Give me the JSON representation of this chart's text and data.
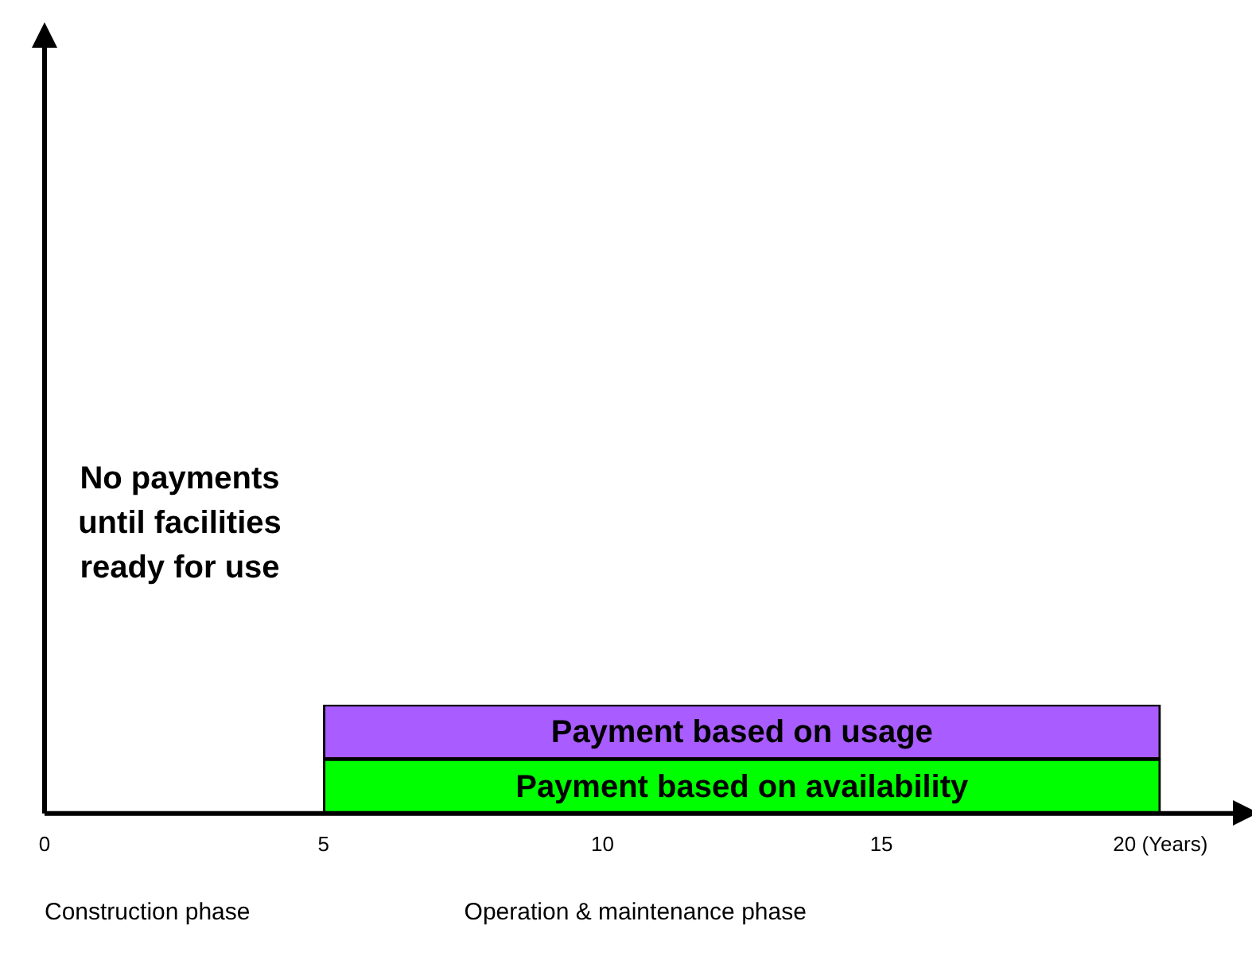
{
  "chart_data": {
    "type": "bar",
    "orientation": "horizontal",
    "categories": [
      "Payment based on usage",
      "Payment based on availability"
    ],
    "values": [
      15,
      15
    ],
    "base": [
      5,
      5
    ],
    "colors": [
      "#a95cff",
      "#00ff00"
    ],
    "xlim": [
      0,
      21.3
    ],
    "xticks": [
      0,
      5,
      10,
      15,
      {
        "value": 20,
        "label": "20 (Years)"
      }
    ],
    "tick_labels": "x",
    "grid": false,
    "legend": false,
    "annotations": [
      "No payments until facilities ready for use",
      "Construction phase",
      "Operation & maintenance phase"
    ]
  }
}
